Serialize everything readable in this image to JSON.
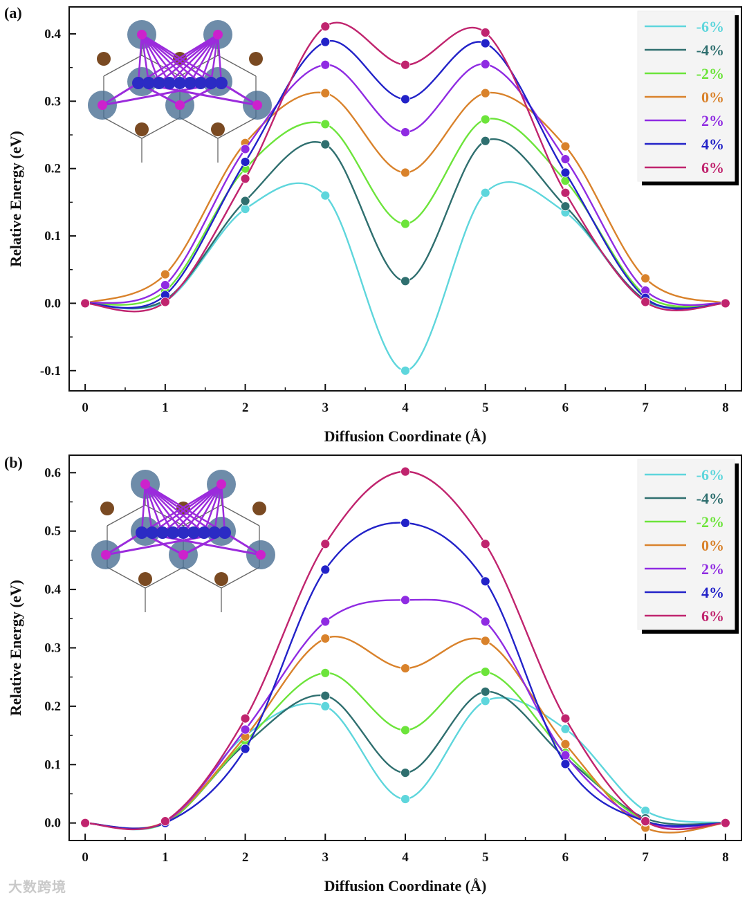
{
  "chart_data": [
    {
      "type": "line",
      "panel_label": "(a)",
      "xlabel": "Diffusion Coordinate (Å)",
      "ylabel": "Relative Energy (eV)",
      "x": [
        0,
        1,
        2,
        3,
        4,
        5,
        6,
        7,
        8
      ],
      "xlim": [
        -0.2,
        8.2
      ],
      "ylim": [
        -0.13,
        0.44
      ],
      "yticks": [
        -0.1,
        0.0,
        0.1,
        0.2,
        0.3,
        0.4
      ],
      "ytick_labels": [
        "-0.1",
        "0.0",
        "0.1",
        "0.2",
        "0.3",
        "0.4"
      ],
      "xtick_labels": [
        "0",
        "1",
        "2",
        "3",
        "4",
        "5",
        "6",
        "7",
        "8"
      ],
      "legend_position": "top-right",
      "series": [
        {
          "name": "-6%",
          "color": "#5ed6dc",
          "values": [
            0.0,
            0.003,
            0.14,
            0.16,
            -0.1,
            0.164,
            0.135,
            0.003,
            0.0
          ]
        },
        {
          "name": "-4%",
          "color": "#2f6f6f",
          "values": [
            0.0,
            0.005,
            0.152,
            0.236,
            0.033,
            0.241,
            0.144,
            0.005,
            0.0
          ]
        },
        {
          "name": "-2%",
          "color": "#6ce43a",
          "values": [
            0.0,
            0.018,
            0.2,
            0.266,
            0.118,
            0.273,
            0.182,
            0.012,
            0.0
          ]
        },
        {
          "name": "0%",
          "color": "#d9822b",
          "values": [
            0.0,
            0.043,
            0.238,
            0.312,
            0.194,
            0.312,
            0.233,
            0.037,
            0.0
          ]
        },
        {
          "name": "2%",
          "color": "#8f2be2",
          "values": [
            0.0,
            0.027,
            0.229,
            0.354,
            0.254,
            0.355,
            0.214,
            0.019,
            0.0
          ]
        },
        {
          "name": "4%",
          "color": "#2222c8",
          "values": [
            0.0,
            0.012,
            0.21,
            0.388,
            0.303,
            0.386,
            0.194,
            0.008,
            0.0
          ]
        },
        {
          "name": "6%",
          "color": "#c0246e",
          "values": [
            0.0,
            0.002,
            0.185,
            0.411,
            0.354,
            0.402,
            0.164,
            0.002,
            0.0
          ]
        }
      ]
    },
    {
      "type": "line",
      "panel_label": "(b)",
      "xlabel": "Diffusion Coordinate (Å)",
      "ylabel": "Relative Energy (eV)",
      "x": [
        0,
        1,
        2,
        3,
        4,
        5,
        6,
        7,
        8
      ],
      "xlim": [
        -0.2,
        8.2
      ],
      "ylim": [
        -0.03,
        0.63
      ],
      "yticks": [
        0.0,
        0.1,
        0.2,
        0.3,
        0.4,
        0.5,
        0.6
      ],
      "ytick_labels": [
        "0.0",
        "0.1",
        "0.2",
        "0.3",
        "0.4",
        "0.5",
        "0.6"
      ],
      "xtick_labels": [
        "0",
        "1",
        "2",
        "3",
        "4",
        "5",
        "6",
        "7",
        "8"
      ],
      "legend_position": "top-right",
      "series": [
        {
          "name": "-6%",
          "color": "#5ed6dc",
          "values": [
            0.0,
            0.0,
            0.15,
            0.2,
            0.041,
            0.209,
            0.161,
            0.021,
            0.0
          ]
        },
        {
          "name": "-4%",
          "color": "#2f6f6f",
          "values": [
            0.0,
            0.0,
            0.135,
            0.218,
            0.086,
            0.225,
            0.112,
            0.008,
            0.0
          ]
        },
        {
          "name": "-2%",
          "color": "#6ce43a",
          "values": [
            0.0,
            0.0,
            0.14,
            0.257,
            0.159,
            0.259,
            0.12,
            0.004,
            0.0
          ]
        },
        {
          "name": "0%",
          "color": "#d9822b",
          "values": [
            0.0,
            0.002,
            0.148,
            0.316,
            0.265,
            0.312,
            0.135,
            -0.008,
            0.0
          ]
        },
        {
          "name": "2%",
          "color": "#8f2be2",
          "values": [
            0.0,
            0.002,
            0.16,
            0.345,
            0.382,
            0.345,
            0.116,
            0.002,
            0.0
          ]
        },
        {
          "name": "4%",
          "color": "#2222c8",
          "values": [
            0.0,
            0.0,
            0.127,
            0.434,
            0.514,
            0.414,
            0.101,
            0.003,
            0.0
          ]
        },
        {
          "name": "6%",
          "color": "#c0246e",
          "values": [
            0.0,
            0.003,
            0.179,
            0.478,
            0.602,
            0.478,
            0.179,
            0.003,
            0.0
          ]
        }
      ]
    }
  ],
  "watermark": "大数跨境",
  "colors": {
    "atom_large": "#4a6f93",
    "atom_small": "#7a4a22",
    "atom_purple": "#cc22cc",
    "atom_blue": "#2b2bc4",
    "bond_purple": "#9b2bdc"
  }
}
